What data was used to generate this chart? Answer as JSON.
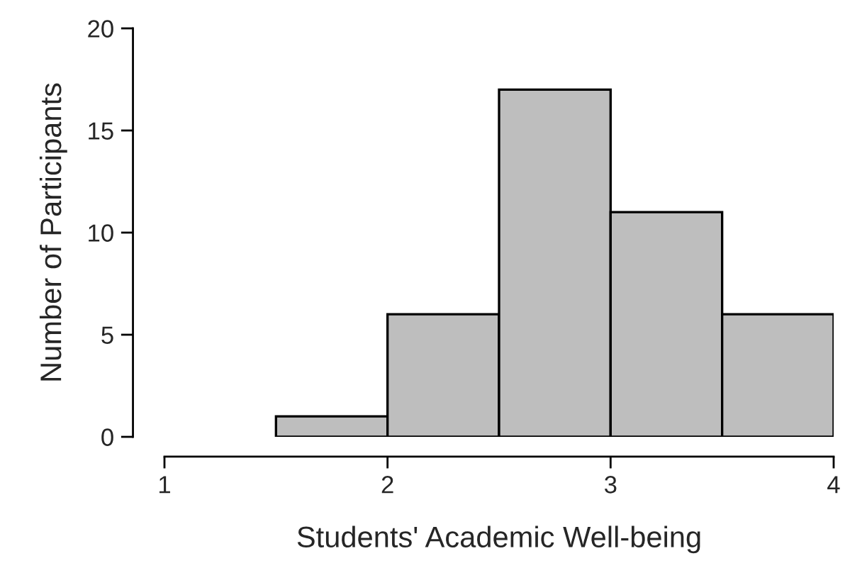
{
  "chart_data": {
    "type": "histogram",
    "xlabel": "Students' Academic Well-being",
    "ylabel": "Number of Participants",
    "bins": [
      1.5,
      2,
      2.5,
      3,
      3.5,
      4
    ],
    "values": [
      1,
      6,
      17,
      11,
      6
    ],
    "color": "#bebebe",
    "xlim": [
      1,
      4
    ],
    "xticks": [
      1,
      2,
      3,
      4
    ],
    "ylim": [
      0,
      20
    ],
    "yticks": [
      0,
      5,
      10,
      15,
      20
    ],
    "grid": false
  }
}
